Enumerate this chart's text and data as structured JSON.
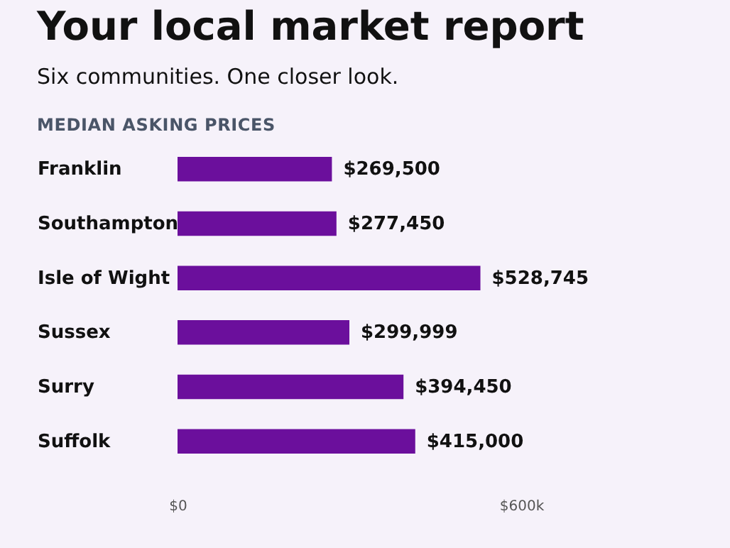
{
  "chart_data": {
    "type": "bar",
    "orientation": "horizontal",
    "title": "Your local market report",
    "subtitle": "Six communities. One closer look.",
    "annotations": [
      "MEDIAN ASKING PRICES"
    ],
    "categories": [
      "Franklin",
      "Southampton",
      "Isle of Wight",
      "Sussex",
      "Surry",
      "Suffolk"
    ],
    "values": [
      269500,
      277450,
      528745,
      299999,
      394450,
      415000
    ],
    "value_labels": [
      "$269,500",
      "$277,450",
      "$528,745",
      "$299,999",
      "$394,450",
      "$415,000"
    ],
    "color": "#6b0f9c",
    "xlim": [
      0,
      600000
    ],
    "xticks": [
      {
        "value": 0,
        "label": "$0"
      },
      {
        "value": 600000,
        "label": "$600k"
      }
    ],
    "grid": false
  }
}
